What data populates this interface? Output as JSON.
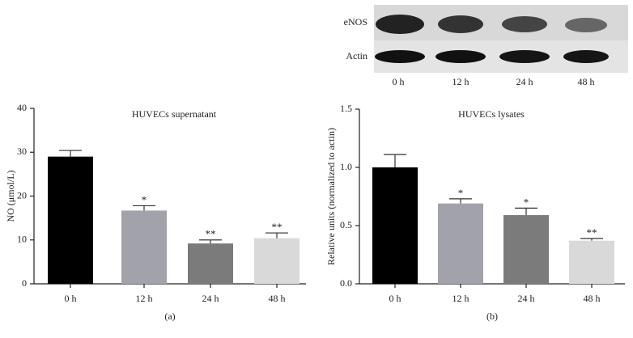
{
  "blot": {
    "rows": [
      "eNOS",
      "Actin"
    ],
    "lanes": [
      "0 h",
      "12 h",
      "24 h",
      "48 h"
    ]
  },
  "chart_data": [
    {
      "type": "bar",
      "title": "HUVECs supernatant",
      "ylabel": "NO (μmol/L)",
      "panel": "(a)",
      "categories": [
        "0 h",
        "12 h",
        "24 h",
        "48 h"
      ],
      "values": [
        29,
        16.7,
        9.2,
        10.4
      ],
      "errors": [
        1.4,
        1.1,
        0.8,
        1.2
      ],
      "annotations": [
        null,
        "*",
        "**",
        "**"
      ],
      "colors": [
        "#000000",
        "#a2a2aa",
        "#7b7b7b",
        "#d9d9d9"
      ],
      "ylim": [
        0,
        40
      ],
      "yticks": [
        0,
        10,
        20,
        30,
        40
      ]
    },
    {
      "type": "bar",
      "title": "HUVECs lysates",
      "ylabel": "Relative units (normalized to actin)",
      "panel": "(b)",
      "categories": [
        "0 h",
        "12 h",
        "24 h",
        "48 h"
      ],
      "values": [
        1.0,
        0.69,
        0.59,
        0.37
      ],
      "errors": [
        0.11,
        0.04,
        0.06,
        0.02
      ],
      "annotations": [
        null,
        "*",
        "*",
        "**"
      ],
      "colors": [
        "#000000",
        "#a2a2aa",
        "#7b7b7b",
        "#d9d9d9"
      ],
      "ylim": [
        0,
        1.5
      ],
      "yticks": [
        {
          "value": 0,
          "label": "0.0"
        },
        0.5,
        {
          "value": 1,
          "label": "1.0"
        },
        1.5
      ]
    }
  ]
}
